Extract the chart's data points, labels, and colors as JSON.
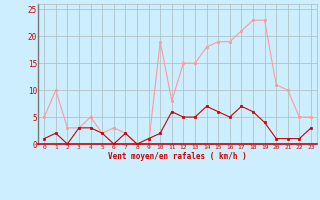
{
  "x": [
    0,
    1,
    2,
    3,
    4,
    5,
    6,
    7,
    8,
    9,
    10,
    11,
    12,
    13,
    14,
    15,
    16,
    17,
    18,
    19,
    20,
    21,
    22,
    23
  ],
  "wind_mean": [
    1,
    2,
    0,
    3,
    3,
    2,
    0,
    2,
    0,
    1,
    2,
    6,
    5,
    5,
    7,
    6,
    5,
    7,
    6,
    4,
    1,
    1,
    1,
    3
  ],
  "wind_gust": [
    5,
    10,
    3,
    3,
    5,
    2,
    3,
    2,
    0,
    0,
    19,
    8,
    15,
    15,
    18,
    19,
    19,
    21,
    23,
    23,
    11,
    10,
    5,
    5
  ],
  "bg_color": "#cceeff",
  "grid_color": "#aabbbb",
  "mean_color": "#cc0000",
  "gust_color": "#ff9999",
  "xlabel": "Vent moyen/en rafales ( km/h )",
  "xlabel_color": "#cc0000",
  "yticks": [
    0,
    5,
    10,
    15,
    20,
    25
  ],
  "ylim": [
    0,
    26
  ],
  "xlim": [
    -0.5,
    23.5
  ]
}
